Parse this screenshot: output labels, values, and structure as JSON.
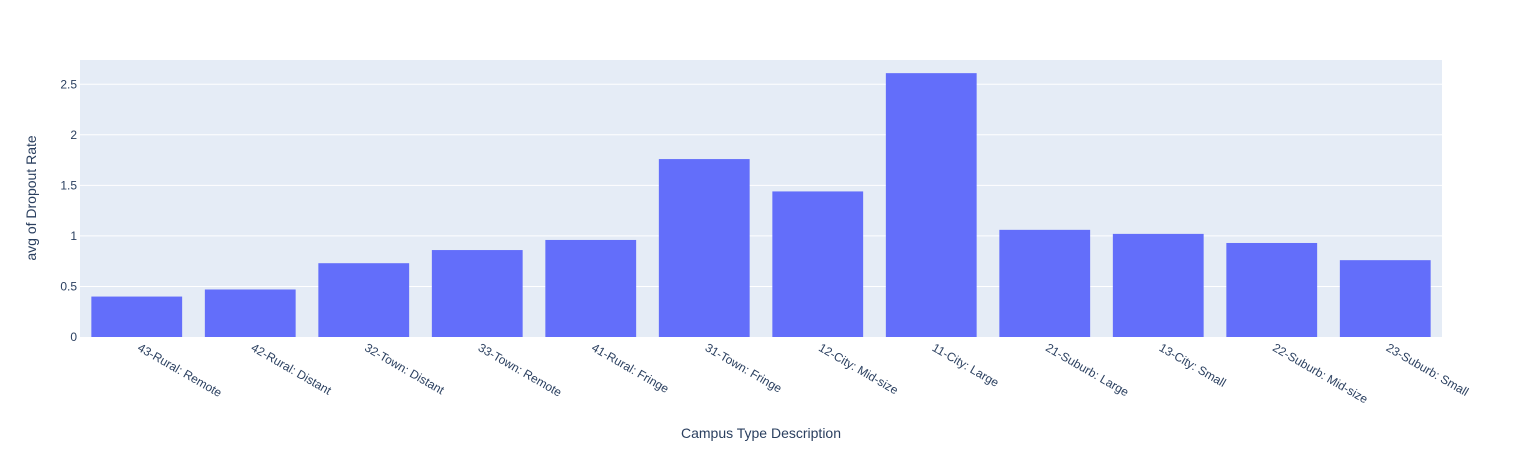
{
  "chart_data": {
    "type": "bar",
    "title": "",
    "xlabel": "Campus Type Description",
    "ylabel": "avg of Dropout Rate",
    "categories": [
      "43-Rural: Remote",
      "42-Rural: Distant",
      "32-Town: Distant",
      "33-Town: Remote",
      "41-Rural: Fringe",
      "31-Town: Fringe",
      "12-City: Mid-size",
      "11-City: Large",
      "21-Suburb: Large",
      "13-City: Small",
      "22-Suburb: Mid-size",
      "23-Suburb: Small"
    ],
    "values": [
      0.4,
      0.47,
      0.73,
      0.86,
      0.96,
      1.76,
      1.44,
      2.61,
      1.06,
      1.02,
      0.93,
      0.76
    ],
    "ylim": [
      0,
      2.74
    ],
    "yticks": [
      0,
      0.5,
      1,
      1.5,
      2,
      2.5
    ],
    "ytick_labels": [
      "0",
      "0.5",
      "1",
      "1.5",
      "2",
      "2.5"
    ],
    "grid": true,
    "colors": {
      "bar": "#636efa",
      "plot_bg": "#e5ecf6",
      "grid": "#ffffff",
      "text": "#2a3f5f"
    }
  }
}
